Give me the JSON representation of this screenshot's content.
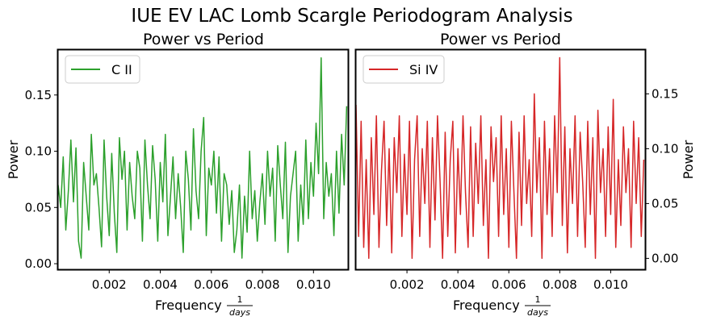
{
  "suptitle": "IUE EV LAC Lomb Scargle Periodogram Analysis",
  "chart_data": [
    {
      "type": "line",
      "title": "Power vs Period",
      "xlabel": "Frequency",
      "xlabel_frac_num": "1",
      "xlabel_frac_den": "days",
      "ylabel": "Power",
      "ylabel_side": "left",
      "xlim": [
        0.0,
        0.01135
      ],
      "ylim": [
        -0.005,
        0.19
      ],
      "xticks": [
        0.002,
        0.004,
        0.006,
        0.008,
        0.01
      ],
      "xtick_labels": [
        "0.002",
        "0.004",
        "0.006",
        "0.008",
        "0.010"
      ],
      "yticks": [
        0.0,
        0.05,
        0.1,
        0.15
      ],
      "ytick_labels": [
        "0.00",
        "0.05",
        "0.10",
        "0.15"
      ],
      "legend": "upper-left",
      "series": [
        {
          "name": "C II",
          "color": "#2ca02c",
          "x": [
            0.0,
            0.0001,
            0.0002,
            0.0003,
            0.0004,
            0.0005,
            0.0006,
            0.0007,
            0.0008,
            0.0009,
            0.001,
            0.0011,
            0.0012,
            0.0013,
            0.0014,
            0.0015,
            0.0016,
            0.0017,
            0.0018,
            0.0019,
            0.002,
            0.0021,
            0.0022,
            0.0023,
            0.0024,
            0.0025,
            0.0026,
            0.0027,
            0.0028,
            0.0029,
            0.003,
            0.0031,
            0.0032,
            0.0033,
            0.0034,
            0.0035,
            0.0036,
            0.0037,
            0.0038,
            0.0039,
            0.004,
            0.0041,
            0.0042,
            0.0043,
            0.0044,
            0.0045,
            0.0046,
            0.0047,
            0.0048,
            0.0049,
            0.005,
            0.0051,
            0.0052,
            0.0053,
            0.0054,
            0.0055,
            0.0056,
            0.0057,
            0.0058,
            0.0059,
            0.006,
            0.0061,
            0.0062,
            0.0063,
            0.0064,
            0.0065,
            0.0066,
            0.0067,
            0.0068,
            0.0069,
            0.007,
            0.0071,
            0.0072,
            0.0073,
            0.0074,
            0.0075,
            0.0076,
            0.0077,
            0.0078,
            0.0079,
            0.008,
            0.0081,
            0.0082,
            0.0083,
            0.0084,
            0.0085,
            0.0086,
            0.0087,
            0.0088,
            0.0089,
            0.009,
            0.0091,
            0.0092,
            0.0093,
            0.0094,
            0.0095,
            0.0096,
            0.0097,
            0.0098,
            0.0099,
            0.01,
            0.0101,
            0.0102,
            0.0103,
            0.0104,
            0.0105,
            0.0106,
            0.0107,
            0.0108,
            0.0109,
            0.011,
            0.0111,
            0.0112,
            0.0113
          ],
          "values": [
            0.07,
            0.05,
            0.095,
            0.03,
            0.065,
            0.11,
            0.055,
            0.103,
            0.02,
            0.005,
            0.09,
            0.06,
            0.03,
            0.115,
            0.07,
            0.08,
            0.05,
            0.015,
            0.11,
            0.06,
            0.025,
            0.098,
            0.045,
            0.01,
            0.112,
            0.075,
            0.1,
            0.03,
            0.09,
            0.06,
            0.04,
            0.1,
            0.085,
            0.02,
            0.11,
            0.07,
            0.04,
            0.105,
            0.075,
            0.02,
            0.09,
            0.055,
            0.115,
            0.025,
            0.06,
            0.095,
            0.04,
            0.08,
            0.05,
            0.01,
            0.1,
            0.075,
            0.03,
            0.12,
            0.065,
            0.04,
            0.1,
            0.13,
            0.025,
            0.085,
            0.07,
            0.1,
            0.045,
            0.095,
            0.02,
            0.08,
            0.07,
            0.035,
            0.065,
            0.01,
            0.03,
            0.07,
            0.005,
            0.06,
            0.028,
            0.1,
            0.04,
            0.065,
            0.02,
            0.055,
            0.08,
            0.035,
            0.1,
            0.06,
            0.085,
            0.02,
            0.105,
            0.07,
            0.04,
            0.108,
            0.01,
            0.06,
            0.08,
            0.1,
            0.02,
            0.07,
            0.035,
            0.11,
            0.04,
            0.09,
            0.06,
            0.125,
            0.08,
            0.183,
            0.04,
            0.09,
            0.06,
            0.08,
            0.025,
            0.1,
            0.045,
            0.115,
            0.07,
            0.14
          ]
        }
      ]
    },
    {
      "type": "line",
      "title": "Power vs Period",
      "xlabel": "Frequency",
      "xlabel_frac_num": "1",
      "xlabel_frac_den": "days",
      "ylabel": "Power",
      "ylabel_side": "right",
      "xlim": [
        0.0,
        0.01135
      ],
      "ylim": [
        -0.01,
        0.19
      ],
      "xticks": [
        0.002,
        0.004,
        0.006,
        0.008,
        0.01
      ],
      "xtick_labels": [
        "0.002",
        "0.004",
        "0.006",
        "0.008",
        "0.010"
      ],
      "yticks": [
        0.0,
        0.05,
        0.1,
        0.15
      ],
      "ytick_labels": [
        "0.00",
        "0.05",
        "0.10",
        "0.15"
      ],
      "legend": "upper-left",
      "series": [
        {
          "name": "Si IV",
          "color": "#d62728",
          "x": [
            0.0,
            0.0001,
            0.0002,
            0.0003,
            0.0004,
            0.0005,
            0.0006,
            0.0007,
            0.0008,
            0.0009,
            0.001,
            0.0011,
            0.0012,
            0.0013,
            0.0014,
            0.0015,
            0.0016,
            0.0017,
            0.0018,
            0.0019,
            0.002,
            0.0021,
            0.0022,
            0.0023,
            0.0024,
            0.0025,
            0.0026,
            0.0027,
            0.0028,
            0.0029,
            0.003,
            0.0031,
            0.0032,
            0.0033,
            0.0034,
            0.0035,
            0.0036,
            0.0037,
            0.0038,
            0.0039,
            0.004,
            0.0041,
            0.0042,
            0.0043,
            0.0044,
            0.0045,
            0.0046,
            0.0047,
            0.0048,
            0.0049,
            0.005,
            0.0051,
            0.0052,
            0.0053,
            0.0054,
            0.0055,
            0.0056,
            0.0057,
            0.0058,
            0.0059,
            0.006,
            0.0061,
            0.0062,
            0.0063,
            0.0064,
            0.0065,
            0.0066,
            0.0067,
            0.0068,
            0.0069,
            0.007,
            0.0071,
            0.0072,
            0.0073,
            0.0074,
            0.0075,
            0.0076,
            0.0077,
            0.0078,
            0.0079,
            0.008,
            0.0081,
            0.0082,
            0.0083,
            0.0084,
            0.0085,
            0.0086,
            0.0087,
            0.0088,
            0.0089,
            0.009,
            0.0091,
            0.0092,
            0.0093,
            0.0094,
            0.0095,
            0.0096,
            0.0097,
            0.0098,
            0.0099,
            0.01,
            0.0101,
            0.0102,
            0.0103,
            0.0104,
            0.0105,
            0.0106,
            0.0107,
            0.0108,
            0.0109,
            0.011,
            0.0111,
            0.0112,
            0.0113
          ],
          "values": [
            0.14,
            0.02,
            0.125,
            0.01,
            0.09,
            0.0,
            0.11,
            0.04,
            0.13,
            0.01,
            0.08,
            0.125,
            0.03,
            0.1,
            0.005,
            0.11,
            0.06,
            0.13,
            0.02,
            0.095,
            0.04,
            0.125,
            0.0,
            0.09,
            0.13,
            0.02,
            0.1,
            0.05,
            0.125,
            0.01,
            0.11,
            0.035,
            0.13,
            0.07,
            0.0,
            0.115,
            0.02,
            0.09,
            0.125,
            0.005,
            0.1,
            0.04,
            0.13,
            0.06,
            0.01,
            0.12,
            0.02,
            0.105,
            0.05,
            0.13,
            0.03,
            0.09,
            0.0,
            0.12,
            0.07,
            0.11,
            0.02,
            0.13,
            0.04,
            0.1,
            0.01,
            0.125,
            0.06,
            0.0,
            0.115,
            0.03,
            0.13,
            0.05,
            0.09,
            0.02,
            0.15,
            0.06,
            0.11,
            0.0,
            0.125,
            0.04,
            0.1,
            0.02,
            0.13,
            0.06,
            0.183,
            0.03,
            0.12,
            0.005,
            0.1,
            0.05,
            0.13,
            0.02,
            0.115,
            0.07,
            0.01,
            0.125,
            0.04,
            0.11,
            0.0,
            0.135,
            0.06,
            0.1,
            0.02,
            0.12,
            0.04,
            0.145,
            0.01,
            0.09,
            0.03,
            0.12,
            0.06,
            0.1,
            0.01,
            0.125,
            0.05,
            0.11,
            0.02,
            0.09
          ]
        }
      ]
    }
  ]
}
